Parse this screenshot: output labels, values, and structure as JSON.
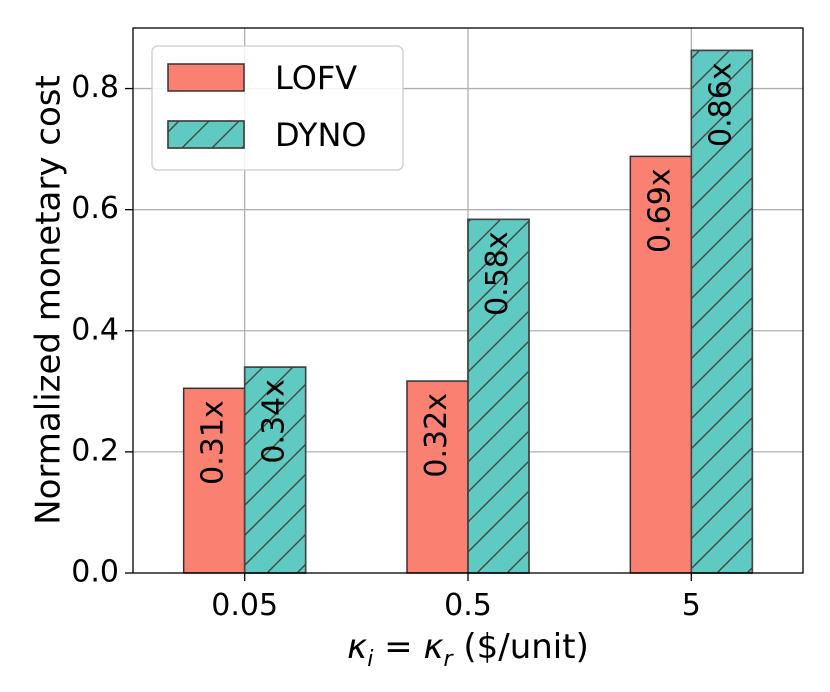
{
  "chart_data": {
    "type": "bar",
    "title": "",
    "xlabel": "κ_i = κ_r ($/unit)",
    "xlabel_parts": {
      "k": "κ",
      "sub_i": "i",
      "eq": " = ",
      "sub_r": "r",
      "unit": " ($/unit)"
    },
    "ylabel": "Normalized monetary cost",
    "ylim": [
      0,
      0.9
    ],
    "yticks": [
      0.0,
      0.2,
      0.4,
      0.6,
      0.8
    ],
    "ytick_labels": [
      "0.0",
      "0.2",
      "0.4",
      "0.6",
      "0.8"
    ],
    "categories": [
      "0.05",
      "0.5",
      "5"
    ],
    "grid": true,
    "legend_position": "top-left",
    "series": [
      {
        "name": "LOFV",
        "values": [
          0.305,
          0.317,
          0.688
        ],
        "labels": [
          "0.31x",
          "0.32x",
          "0.69x"
        ],
        "color": "#FA8072",
        "hatch": false
      },
      {
        "name": "DYNO",
        "values": [
          0.34,
          0.584,
          0.863
        ],
        "labels": [
          "0.34x",
          "0.58x",
          "0.86x"
        ],
        "color": "#5FCAC2",
        "hatch": true
      }
    ]
  }
}
